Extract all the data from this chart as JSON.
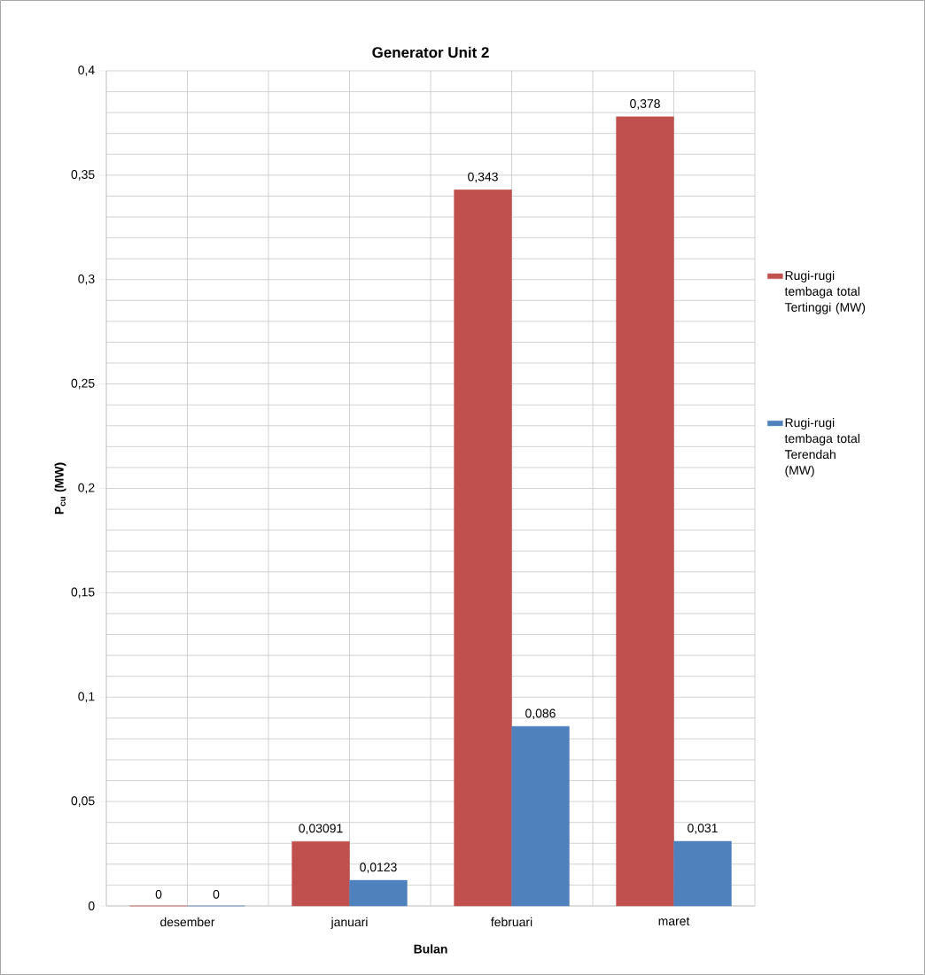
{
  "chart_data": {
    "type": "bar",
    "title": "Generator Unit 2",
    "xlabel": "Bulan",
    "ylabel": "P$_{cu}$ (MW)",
    "categories": [
      "desember",
      "januari",
      "februari",
      "maret"
    ],
    "series": [
      {
        "name": "Rugi-rugi tembaga total Tertinggi (MW)",
        "color": "#c0504d",
        "values": [
          0,
          0.03091,
          0.343,
          0.378
        ],
        "value_labels": [
          "0",
          "0,03091",
          "0,343",
          "0,378"
        ]
      },
      {
        "name": "Rugi-rugi tembaga total Terendah (MW)",
        "color": "#4f81bd",
        "values": [
          0,
          0.0123,
          0.086,
          0.031
        ],
        "value_labels": [
          "0",
          "0,0123",
          "0,086",
          "0,031"
        ]
      }
    ],
    "ylim": [
      0,
      0.4
    ],
    "yticks": [
      0,
      {
        "value": 0.05,
        "label": "0,05"
      },
      {
        "value": 0.1,
        "label": "0,1"
      },
      {
        "value": 0.15,
        "label": "0,15"
      },
      {
        "value": 0.2,
        "label": "0,2"
      },
      {
        "value": 0.25,
        "label": "0,25"
      },
      {
        "value": 0.3,
        "label": "0,3"
      },
      {
        "value": 0.35,
        "label": "0,35"
      },
      {
        "value": 0.4,
        "label": "0,4"
      }
    ],
    "grid": true,
    "legend": "right"
  }
}
